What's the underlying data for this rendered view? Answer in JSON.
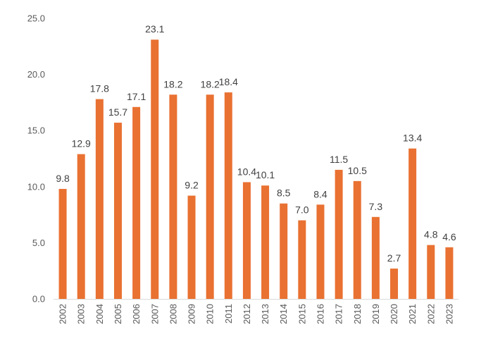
{
  "chart_data": {
    "type": "bar",
    "title": "",
    "xlabel": "",
    "ylabel": "",
    "ylim": [
      0,
      25
    ],
    "yticks": [
      "0.0",
      "5.0",
      "10.0",
      "15.0",
      "20.0",
      "25.0"
    ],
    "grid": false,
    "legend": "none",
    "categories": [
      "2002",
      "2003",
      "2004",
      "2005",
      "2006",
      "2007",
      "2008",
      "2009",
      "2010",
      "2011",
      "2012",
      "2013",
      "2014",
      "2015",
      "2016",
      "2017",
      "2018",
      "2019",
      "2020",
      "2021",
      "2022",
      "2023"
    ],
    "values": [
      9.8,
      12.9,
      17.8,
      15.7,
      17.1,
      23.1,
      18.2,
      9.2,
      18.2,
      18.4,
      10.4,
      10.1,
      8.5,
      7.0,
      8.4,
      11.5,
      10.5,
      7.3,
      2.7,
      13.4,
      4.8,
      4.6
    ],
    "data_labels": [
      "9.8",
      "12.9",
      "17.8",
      "15.7",
      "17.1",
      "23.1",
      "18.2",
      "9.2",
      "18.2",
      "18.4",
      "10.4",
      "10.1",
      "8.5",
      "7.0",
      "8.4",
      "11.5",
      "10.5",
      "7.3",
      "2.7",
      "13.4",
      "4.8",
      "4.6"
    ],
    "colors": {
      "bar": "#E97132",
      "axis": "#D9D9D9",
      "tick_text": "#595959",
      "label_text": "#404040"
    }
  }
}
